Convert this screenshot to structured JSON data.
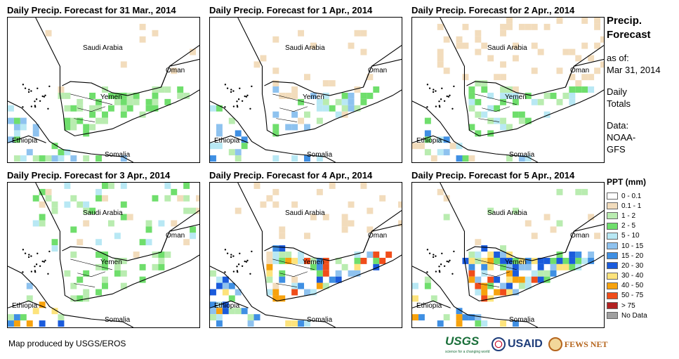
{
  "panels": [
    {
      "title": "Daily Precip. Forecast for 31 Mar., 2014",
      "day": 0
    },
    {
      "title": "Daily Precip. Forecast for 1 Apr., 2014",
      "day": 1
    },
    {
      "title": "Daily Precip. Forecast for 2 Apr., 2014",
      "day": 2
    },
    {
      "title": "Daily Precip. Forecast for 3 Apr., 2014",
      "day": 3
    },
    {
      "title": "Daily Precip. Forecast for 4 Apr., 2014",
      "day": 4
    },
    {
      "title": "Daily Precip. Forecast for 5 Apr., 2014",
      "day": 5
    }
  ],
  "map_labels": {
    "saudi": "Saudi Arabia",
    "oman": "Oman",
    "yemen": "Yemen",
    "ethiopia": "Ethiopia",
    "somalia": "Somalia"
  },
  "sidebar": {
    "title_line1": "Precip.",
    "title_line2": "Forecast",
    "asof_label": "as of:",
    "asof_date": "Mar 31, 2014",
    "daily_line1": "Daily",
    "daily_line2": "Totals",
    "data_label": "Data:",
    "data_line1": "NOAA-",
    "data_line2": "GFS"
  },
  "legend": {
    "title": "PPT (mm)",
    "items": [
      {
        "label": "0 - 0.1",
        "color": "#ffffff"
      },
      {
        "label": "0.1 - 1",
        "color": "#f2dcbc"
      },
      {
        "label": "1 - 2",
        "color": "#b9ecb0"
      },
      {
        "label": "2 - 5",
        "color": "#6fde6c"
      },
      {
        "label": "5 - 10",
        "color": "#b8e8f4"
      },
      {
        "label": "10 - 15",
        "color": "#8ec2ef"
      },
      {
        "label": "15 - 20",
        "color": "#3f8fe3"
      },
      {
        "label": "20 - 30",
        "color": "#1a5bdc"
      },
      {
        "label": "30 - 40",
        "color": "#fde37c"
      },
      {
        "label": "40 - 50",
        "color": "#f7a20d"
      },
      {
        "label": "50 - 75",
        "color": "#f04d1a"
      },
      {
        "label": "> 75",
        "color": "#b22222"
      },
      {
        "label": "No Data",
        "color": "#a0a0a0"
      }
    ]
  },
  "credit": "Map produced by USGS/EROS",
  "logos": {
    "usgs": "USGS",
    "usgs_tagline": "science for a changing world",
    "usaid": "USAID",
    "fews": "FEWS NET"
  }
}
